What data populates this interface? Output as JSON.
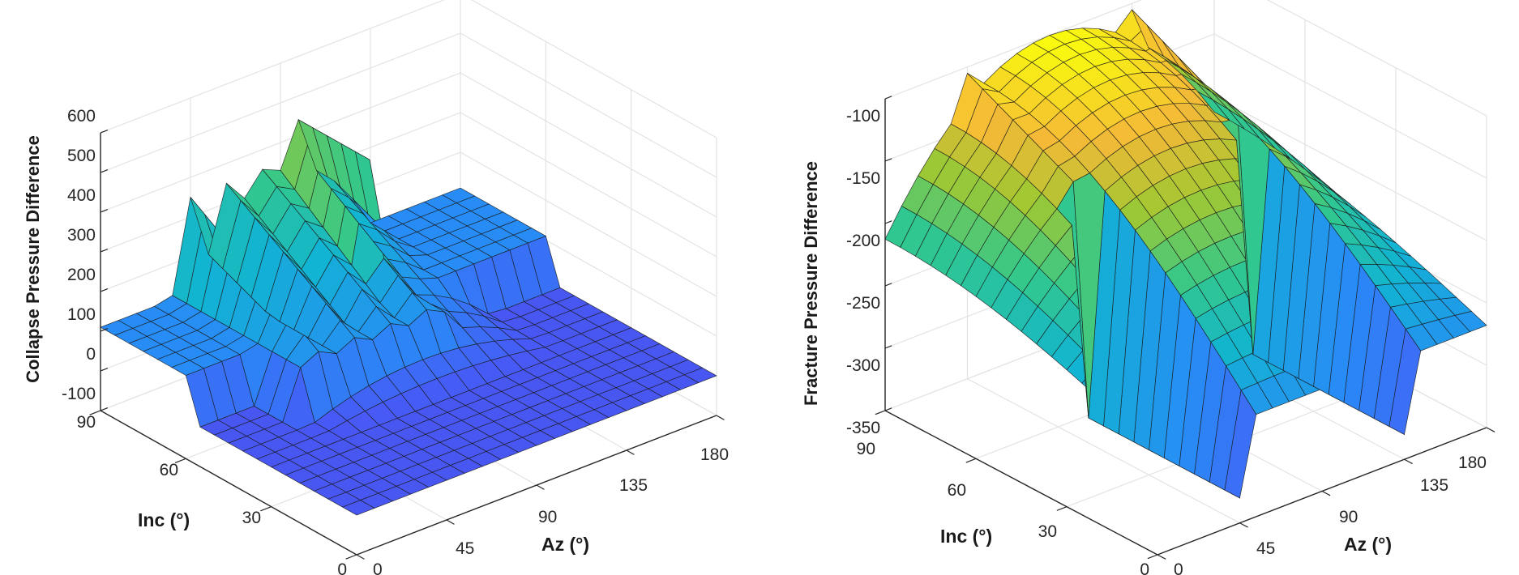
{
  "chart_data": [
    {
      "type": "surface",
      "xlabel": "Az (°)",
      "ylabel": "Inc (°)",
      "zlabel": "Collapse Pressure Difference",
      "xlim": [
        0,
        180
      ],
      "ylim": [
        0,
        90
      ],
      "zlim": [
        -100,
        600
      ],
      "xticks": [
        0,
        45,
        90,
        135,
        180
      ],
      "yticks": [
        0,
        30,
        60,
        90
      ],
      "zticks": [
        -100,
        0,
        100,
        200,
        300,
        400,
        500,
        600
      ],
      "grid": true,
      "colormap": "parula",
      "surface": {
        "grid_step_az": 9,
        "grid_step_inc": 5,
        "description_values": {
          "baseline_low_inc": 0,
          "baseline_high_inc": 110,
          "dome_peak": 330,
          "dome_peak_az": 90,
          "dome_peak_inc": 88,
          "ridge_peak": 480,
          "ridge_peak_az": 100,
          "ridge_peak_inc": 88
        }
      }
    },
    {
      "type": "surface",
      "xlabel": "Az (°)",
      "ylabel": "Inc (°)",
      "zlabel": "Fracture Pressure Difference",
      "xlim": [
        0,
        180
      ],
      "ylim": [
        0,
        90
      ],
      "zlim": [
        -350,
        -100
      ],
      "xticks": [
        0,
        45,
        90,
        135,
        180
      ],
      "yticks": [
        0,
        30,
        60,
        90
      ],
      "zticks": [
        -350,
        -300,
        -250,
        -200,
        -150,
        -100
      ],
      "grid": true,
      "colormap": "parula",
      "surface": {
        "grid_step_az": 9,
        "grid_step_inc": 5,
        "description_values": {
          "low_inc_value": -268,
          "dome_peak": -100,
          "dome_peak_az": 90,
          "dome_peak_inc": 90,
          "spike_min": -330,
          "spike_az": [
            45,
            135
          ],
          "spike_top": -105
        }
      }
    }
  ],
  "colors": {
    "background": "#ffffff",
    "grid": "#e3e3e3",
    "axis": "#262626",
    "edge": "#1a1a1a"
  }
}
